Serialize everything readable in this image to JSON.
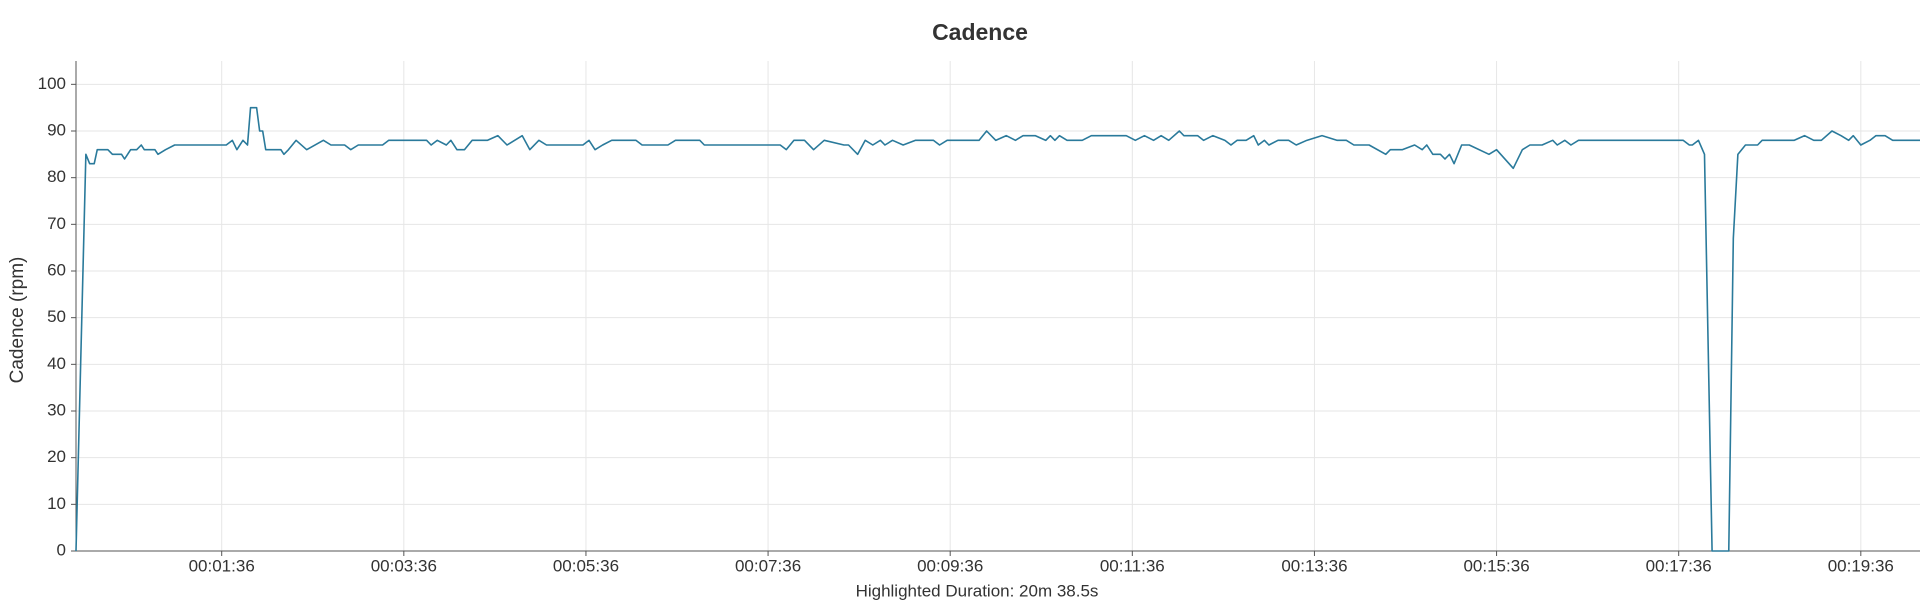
{
  "chart_data": {
    "type": "line",
    "title": "Cadence",
    "ylabel": "Cadence (rpm)",
    "annotation": "Highlighted Duration: 20m 38.5s",
    "color": "#2a7a9b",
    "grid": true,
    "xlim": [
      0,
      1215
    ],
    "ylim": [
      0,
      105
    ],
    "xticks": [
      {
        "value": 96,
        "label": "00:01:36"
      },
      {
        "value": 216,
        "label": "00:03:36"
      },
      {
        "value": 336,
        "label": "00:05:36"
      },
      {
        "value": 456,
        "label": "00:07:36"
      },
      {
        "value": 576,
        "label": "00:09:36"
      },
      {
        "value": 696,
        "label": "00:11:36"
      },
      {
        "value": 816,
        "label": "00:13:36"
      },
      {
        "value": 936,
        "label": "00:15:36"
      },
      {
        "value": 1056,
        "label": "00:17:36"
      },
      {
        "value": 1176,
        "label": "00:19:36"
      }
    ],
    "yticks": [
      0,
      10,
      20,
      30,
      40,
      50,
      60,
      70,
      80,
      90,
      100
    ],
    "x": [
      0,
      6.5,
      9,
      12,
      14,
      21,
      24,
      30,
      32,
      36,
      40,
      43,
      45,
      52,
      54,
      59,
      65,
      99,
      103,
      106,
      110,
      113,
      115,
      119,
      121,
      123,
      125,
      135,
      137,
      140,
      145,
      152,
      163,
      168,
      177,
      181,
      186,
      202,
      206,
      231,
      234,
      238,
      244,
      247,
      251,
      256,
      261,
      271,
      278,
      284,
      294,
      299,
      305,
      310,
      334,
      338,
      342,
      347,
      353,
      369,
      373,
      390,
      395,
      411,
      414,
      464,
      468,
      473,
      480,
      486,
      493,
      506,
      509,
      515,
      520,
      525,
      530,
      533,
      538,
      545,
      553,
      565,
      569,
      574,
      595,
      600,
      606,
      613,
      619,
      624,
      632,
      639,
      642,
      645,
      648,
      653,
      663,
      669,
      692,
      698,
      704,
      710,
      715,
      720,
      727,
      730,
      739,
      743,
      749,
      757,
      761,
      765,
      771,
      776,
      779,
      783,
      786,
      792,
      799,
      804,
      811,
      821,
      831,
      837,
      842,
      852,
      863,
      866,
      874,
      882,
      887,
      890,
      894,
      899,
      902,
      905,
      908,
      913,
      918,
      931,
      936,
      947,
      953,
      958,
      966,
      973,
      976,
      981,
      985,
      990,
      1059,
      1063,
      1065,
      1069,
      1073,
      1078,
      1089,
      1092,
      1095,
      1100,
      1108,
      1111,
      1132,
      1139,
      1145,
      1150,
      1157,
      1163,
      1168,
      1171,
      1176,
      1182,
      1186,
      1192,
      1197,
      1215
    ],
    "values": [
      0,
      85,
      83,
      83,
      86,
      86,
      85,
      85,
      84,
      86,
      86,
      87,
      86,
      86,
      85,
      86,
      87,
      87,
      88,
      86,
      88,
      87,
      95,
      95,
      90,
      90,
      86,
      86,
      85,
      86,
      88,
      86,
      88,
      87,
      87,
      86,
      87,
      87,
      88,
      88,
      87,
      88,
      87,
      88,
      86,
      86,
      88,
      88,
      89,
      87,
      89,
      86,
      88,
      87,
      87,
      88,
      86,
      87,
      88,
      88,
      87,
      87,
      88,
      88,
      87,
      87,
      86,
      88,
      88,
      86,
      88,
      87,
      87,
      85,
      88,
      87,
      88,
      87,
      88,
      87,
      88,
      88,
      87,
      88,
      88,
      90,
      88,
      89,
      88,
      89,
      89,
      88,
      89,
      88,
      89,
      88,
      88,
      89,
      89,
      88,
      89,
      88,
      89,
      88,
      90,
      89,
      89,
      88,
      89,
      88,
      87,
      88,
      88,
      89,
      87,
      88,
      87,
      88,
      88,
      87,
      88,
      89,
      88,
      88,
      87,
      87,
      85,
      86,
      86,
      87,
      86,
      87,
      85,
      85,
      84,
      85,
      83,
      87,
      87,
      85,
      86,
      82,
      86,
      87,
      87,
      88,
      87,
      88,
      87,
      88,
      88,
      87,
      87,
      88,
      85,
      0,
      0,
      67,
      85,
      87,
      87,
      88,
      88,
      89,
      88,
      88,
      90,
      89,
      88,
      89,
      87,
      88,
      89,
      89,
      88,
      88
    ]
  }
}
